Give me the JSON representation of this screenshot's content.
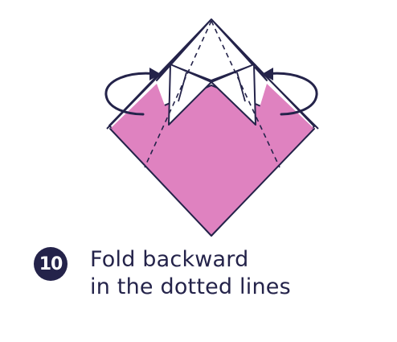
{
  "step": {
    "number": "10",
    "instruction_line1": "Fold backward",
    "instruction_line2": "in the dotted lines"
  },
  "colors": {
    "paper_pink": "#df82c0",
    "paper_white": "#ffffff",
    "outline": "#24234a",
    "arrow": "#24234a"
  },
  "icons": {
    "left_arrow": "curved-arrow-backward-left-icon",
    "right_arrow": "curved-arrow-backward-right-icon"
  }
}
